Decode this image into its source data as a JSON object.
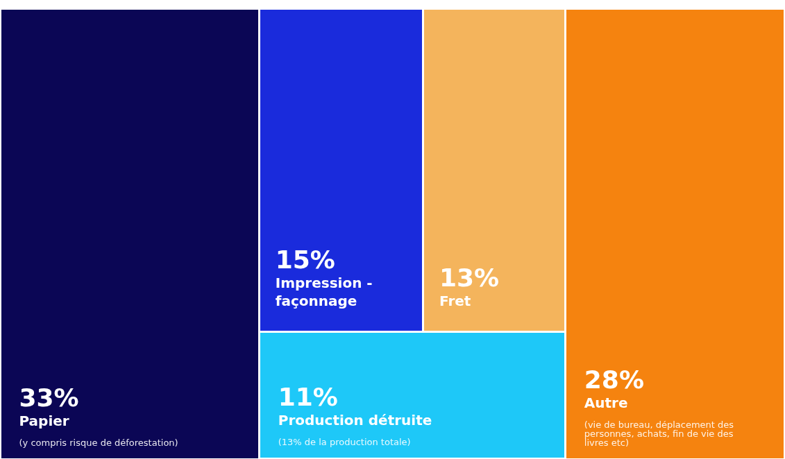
{
  "chart_data": {
    "type": "other",
    "categories": [
      "Papier",
      "Impression - façonnage",
      "Fret",
      "Production détruite",
      "Autre"
    ],
    "values": [
      33,
      15,
      13,
      11,
      28
    ],
    "value_labels": [
      "33%",
      "15%",
      "13%",
      "11%",
      "28%"
    ],
    "colors": [
      "#0b0655",
      "#1a2bdc",
      "#f4b45c",
      "#1ec8f8",
      "#f5830f"
    ],
    "annotations": [
      "(y compris risque de déforestation)",
      "(13% de la production totale)",
      "(vie de bureau, déplacement des personnes, achats, fin de vie des livres etc)"
    ]
  }
}
